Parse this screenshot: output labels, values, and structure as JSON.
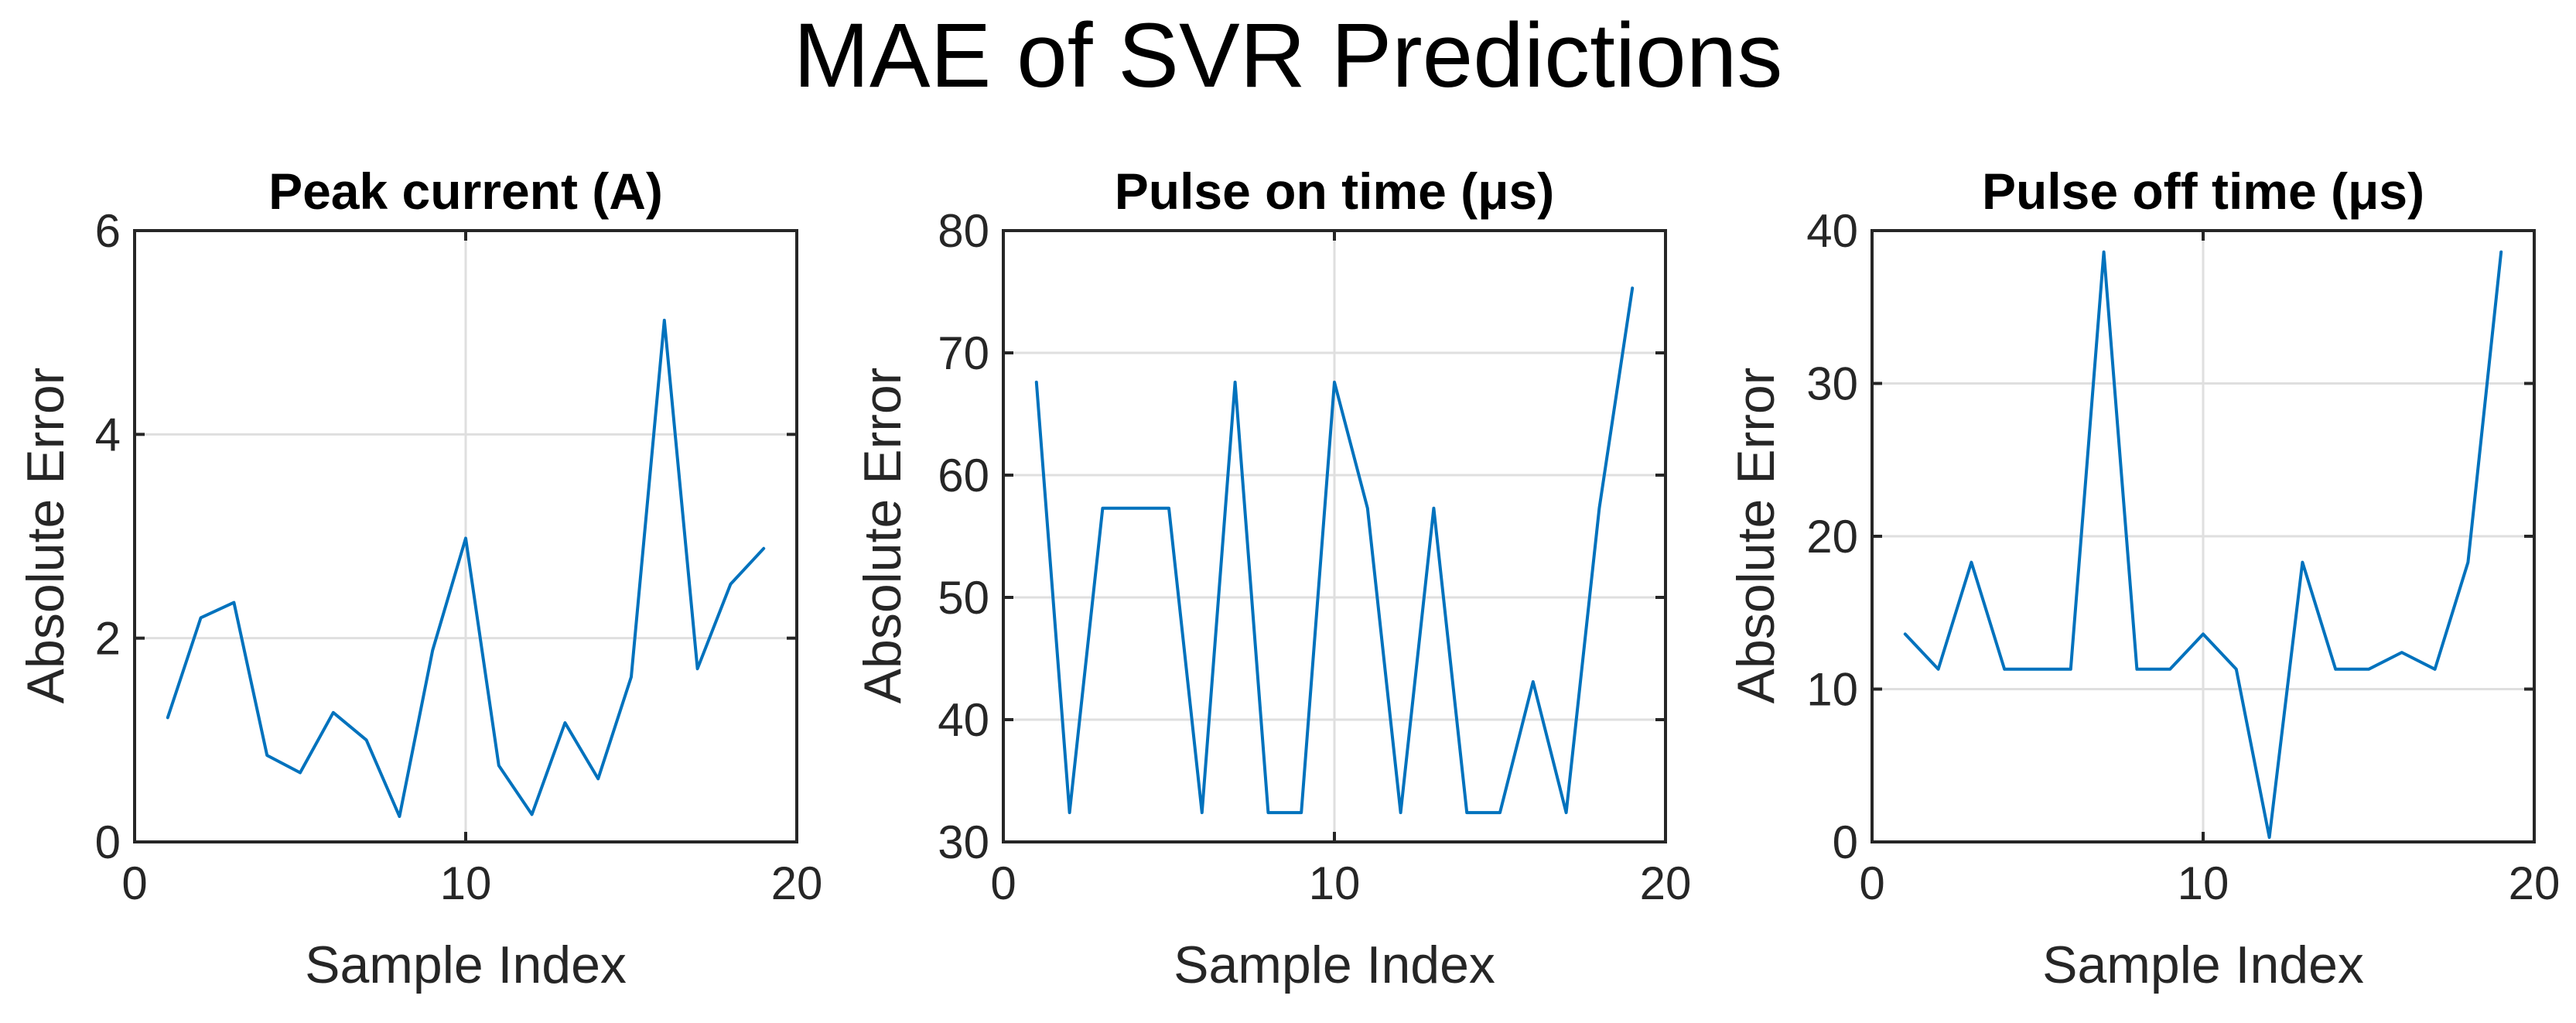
{
  "figure_title": "MAE of SVR Predictions",
  "line_color": "#0072bd",
  "chart_data": [
    {
      "type": "line",
      "title": "Peak current (A)",
      "xlabel": "Sample Index",
      "ylabel": "Absolute Error",
      "xlim": [
        0,
        20
      ],
      "ylim": [
        0,
        6
      ],
      "xticks": [
        0,
        10,
        20
      ],
      "yticks": [
        0,
        2,
        4,
        6
      ],
      "grid": true,
      "x": [
        1,
        2,
        3,
        4,
        5,
        6,
        7,
        8,
        9,
        10,
        11,
        12,
        13,
        14,
        15,
        16,
        17,
        18,
        19
      ],
      "values": [
        1.22,
        2.2,
        2.35,
        0.85,
        0.68,
        1.27,
        1.0,
        0.25,
        1.88,
        2.98,
        0.75,
        0.27,
        1.17,
        0.62,
        1.62,
        5.12,
        1.7,
        2.53,
        2.88
      ]
    },
    {
      "type": "line",
      "title": "Pulse on time (μs)",
      "xlabel": "Sample Index",
      "ylabel": "Absolute Error",
      "xlim": [
        0,
        20
      ],
      "ylim": [
        30,
        80
      ],
      "xticks": [
        0,
        10,
        20
      ],
      "yticks": [
        30,
        40,
        50,
        60,
        70,
        80
      ],
      "grid": true,
      "x": [
        1,
        2,
        3,
        4,
        5,
        6,
        7,
        8,
        9,
        10,
        11,
        12,
        13,
        14,
        15,
        16,
        17,
        18,
        19
      ],
      "values": [
        67.6,
        32.4,
        57.3,
        57.3,
        57.3,
        32.4,
        67.6,
        32.4,
        32.4,
        67.6,
        57.3,
        32.4,
        57.3,
        32.4,
        32.4,
        43.1,
        32.4,
        57.3,
        75.3
      ]
    },
    {
      "type": "line",
      "title": "Pulse off time (μs)",
      "xlabel": "Sample Index",
      "ylabel": "Absolute Error",
      "xlim": [
        0,
        20
      ],
      "ylim": [
        0,
        40
      ],
      "xticks": [
        0,
        10,
        20
      ],
      "yticks": [
        0,
        10,
        20,
        30,
        40
      ],
      "grid": true,
      "x": [
        1,
        2,
        3,
        4,
        5,
        6,
        7,
        8,
        9,
        10,
        11,
        12,
        13,
        14,
        15,
        16,
        17,
        18,
        19
      ],
      "values": [
        13.6,
        11.3,
        18.3,
        11.3,
        11.3,
        11.3,
        38.6,
        11.3,
        11.3,
        13.6,
        11.3,
        0.3,
        18.3,
        11.3,
        11.3,
        12.4,
        11.3,
        18.3,
        38.6
      ]
    }
  ]
}
